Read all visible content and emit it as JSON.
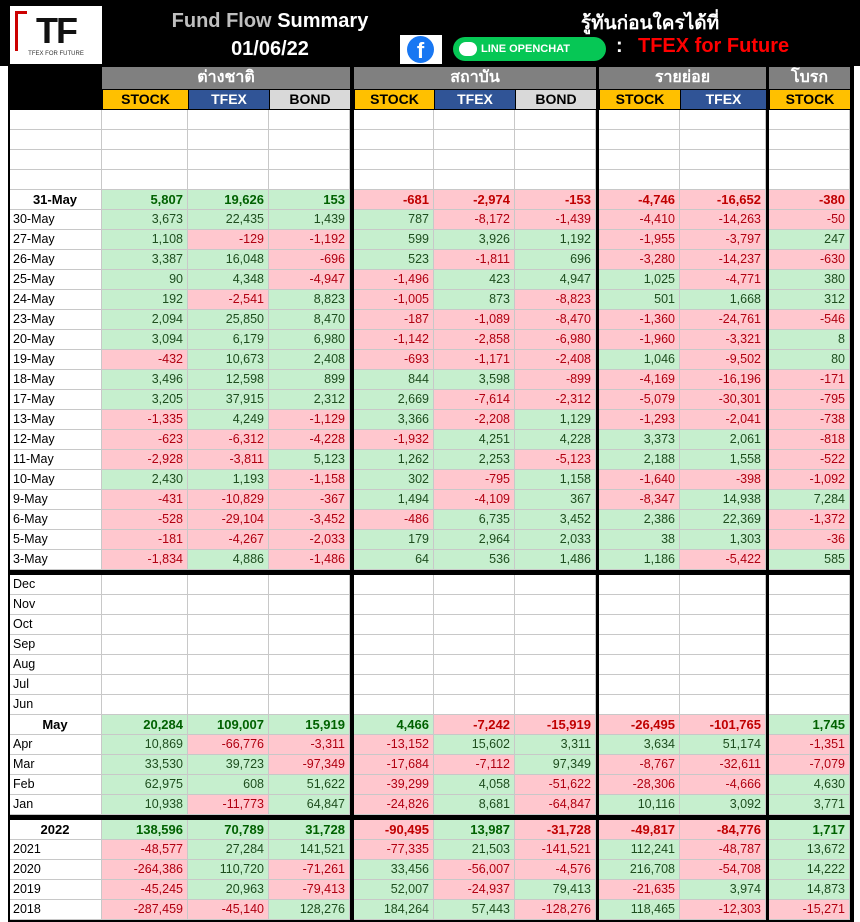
{
  "header": {
    "logo": {
      "mark": "TF",
      "caption": "TFEX FOR FUTURE"
    },
    "title_a": "Fund Flow",
    "title_b": "Summary",
    "date": "01/06/22",
    "tagline": "รู้ทันก่อนใครได้ที่",
    "facebook": "f",
    "line": "LINE OPENCHAT",
    "colon": ":",
    "channel": "TFEX for Future"
  },
  "groups": [
    {
      "name": "ต่างชาติ",
      "columns": [
        "STOCK",
        "TFEX",
        "BOND"
      ]
    },
    {
      "name": "สถาบัน",
      "columns": [
        "STOCK",
        "TFEX",
        "BOND"
      ]
    },
    {
      "name": "รายย่อย",
      "columns": [
        "STOCK",
        "TFEX"
      ]
    },
    {
      "name": "โบรก",
      "columns": [
        "STOCK"
      ]
    }
  ],
  "sections": [
    {
      "total": {
        "label": "31-May",
        "values": [
          "5,807",
          "19,626",
          "153",
          "-681",
          "-2,974",
          "-153",
          "-4,746",
          "-16,652",
          "-380"
        ]
      },
      "rows": [
        {
          "label": "30-May",
          "values": [
            "3,673",
            "22,435",
            "1,439",
            "787",
            "-8,172",
            "-1,439",
            "-4,410",
            "-14,263",
            "-50"
          ]
        },
        {
          "label": "27-May",
          "values": [
            "1,108",
            "-129",
            "-1,192",
            "599",
            "3,926",
            "1,192",
            "-1,955",
            "-3,797",
            "247"
          ]
        },
        {
          "label": "26-May",
          "values": [
            "3,387",
            "16,048",
            "-696",
            "523",
            "-1,811",
            "696",
            "-3,280",
            "-14,237",
            "-630"
          ]
        },
        {
          "label": "25-May",
          "values": [
            "90",
            "4,348",
            "-4,947",
            "-1,496",
            "423",
            "4,947",
            "1,025",
            "-4,771",
            "380"
          ]
        },
        {
          "label": "24-May",
          "values": [
            "192",
            "-2,541",
            "8,823",
            "-1,005",
            "873",
            "-8,823",
            "501",
            "1,668",
            "312"
          ]
        },
        {
          "label": "23-May",
          "values": [
            "2,094",
            "25,850",
            "8,470",
            "-187",
            "-1,089",
            "-8,470",
            "-1,360",
            "-24,761",
            "-546"
          ]
        },
        {
          "label": "20-May",
          "values": [
            "3,094",
            "6,179",
            "6,980",
            "-1,142",
            "-2,858",
            "-6,980",
            "-1,960",
            "-3,321",
            "8"
          ]
        },
        {
          "label": "19-May",
          "values": [
            "-432",
            "10,673",
            "2,408",
            "-693",
            "-1,171",
            "-2,408",
            "1,046",
            "-9,502",
            "80"
          ]
        },
        {
          "label": "18-May",
          "values": [
            "3,496",
            "12,598",
            "899",
            "844",
            "3,598",
            "-899",
            "-4,169",
            "-16,196",
            "-171"
          ]
        },
        {
          "label": "17-May",
          "values": [
            "3,205",
            "37,915",
            "2,312",
            "2,669",
            "-7,614",
            "-2,312",
            "-5,079",
            "-30,301",
            "-795"
          ]
        },
        {
          "label": "13-May",
          "values": [
            "-1,335",
            "4,249",
            "-1,129",
            "3,366",
            "-2,208",
            "1,129",
            "-1,293",
            "-2,041",
            "-738"
          ]
        },
        {
          "label": "12-May",
          "values": [
            "-623",
            "-6,312",
            "-4,228",
            "-1,932",
            "4,251",
            "4,228",
            "3,373",
            "2,061",
            "-818"
          ]
        },
        {
          "label": "11-May",
          "values": [
            "-2,928",
            "-3,811",
            "5,123",
            "1,262",
            "2,253",
            "-5,123",
            "2,188",
            "1,558",
            "-522"
          ]
        },
        {
          "label": "10-May",
          "values": [
            "2,430",
            "1,193",
            "-1,158",
            "302",
            "-795",
            "1,158",
            "-1,640",
            "-398",
            "-1,092"
          ]
        },
        {
          "label": "9-May",
          "values": [
            "-431",
            "-10,829",
            "-367",
            "1,494",
            "-4,109",
            "367",
            "-8,347",
            "14,938",
            "7,284"
          ]
        },
        {
          "label": "6-May",
          "values": [
            "-528",
            "-29,104",
            "-3,452",
            "-486",
            "6,735",
            "3,452",
            "2,386",
            "22,369",
            "-1,372"
          ]
        },
        {
          "label": "5-May",
          "values": [
            "-181",
            "-4,267",
            "-2,033",
            "179",
            "2,964",
            "2,033",
            "38",
            "1,303",
            "-36"
          ]
        },
        {
          "label": "3-May",
          "values": [
            "-1,834",
            "4,886",
            "-1,486",
            "64",
            "536",
            "1,486",
            "1,186",
            "-5,422",
            "585"
          ]
        }
      ]
    },
    {
      "labels_only": [
        "Dec",
        "Nov",
        "Oct",
        "Sep",
        "Aug",
        "Jul",
        "Jun"
      ],
      "total": {
        "label": "May",
        "values": [
          "20,284",
          "109,007",
          "15,919",
          "4,466",
          "-7,242",
          "-15,919",
          "-26,495",
          "-101,765",
          "1,745"
        ]
      },
      "rows": [
        {
          "label": "Apr",
          "values": [
            "10,869",
            "-66,776",
            "-3,311",
            "-13,152",
            "15,602",
            "3,311",
            "3,634",
            "51,174",
            "-1,351"
          ]
        },
        {
          "label": "Mar",
          "values": [
            "33,530",
            "39,723",
            "-97,349",
            "-17,684",
            "-7,112",
            "97,349",
            "-8,767",
            "-32,611",
            "-7,079"
          ]
        },
        {
          "label": "Feb",
          "values": [
            "62,975",
            "608",
            "51,622",
            "-39,299",
            "4,058",
            "-51,622",
            "-28,306",
            "-4,666",
            "4,630"
          ]
        },
        {
          "label": "Jan",
          "values": [
            "10,938",
            "-11,773",
            "64,847",
            "-24,826",
            "8,681",
            "-64,847",
            "10,116",
            "3,092",
            "3,771"
          ]
        }
      ]
    },
    {
      "total": {
        "label": "2022",
        "values": [
          "138,596",
          "70,789",
          "31,728",
          "-90,495",
          "13,987",
          "-31,728",
          "-49,817",
          "-84,776",
          "1,717"
        ]
      },
      "rows": [
        {
          "label": "2021",
          "values": [
            "-48,577",
            "27,284",
            "141,521",
            "-77,335",
            "21,503",
            "-141,521",
            "112,241",
            "-48,787",
            "13,672"
          ]
        },
        {
          "label": "2020",
          "values": [
            "-264,386",
            "110,720",
            "-71,261",
            "33,456",
            "-56,007",
            "-4,576",
            "216,708",
            "-54,708",
            "14,222"
          ]
        },
        {
          "label": "2019",
          "values": [
            "-45,245",
            "20,963",
            "-79,413",
            "52,007",
            "-24,937",
            "79,413",
            "-21,635",
            "3,974",
            "14,873"
          ]
        },
        {
          "label": "2018",
          "values": [
            "-287,459",
            "-45,140",
            "128,276",
            "184,264",
            "57,443",
            "-128,276",
            "118,465",
            "-12,303",
            "-15,271"
          ]
        }
      ]
    }
  ]
}
